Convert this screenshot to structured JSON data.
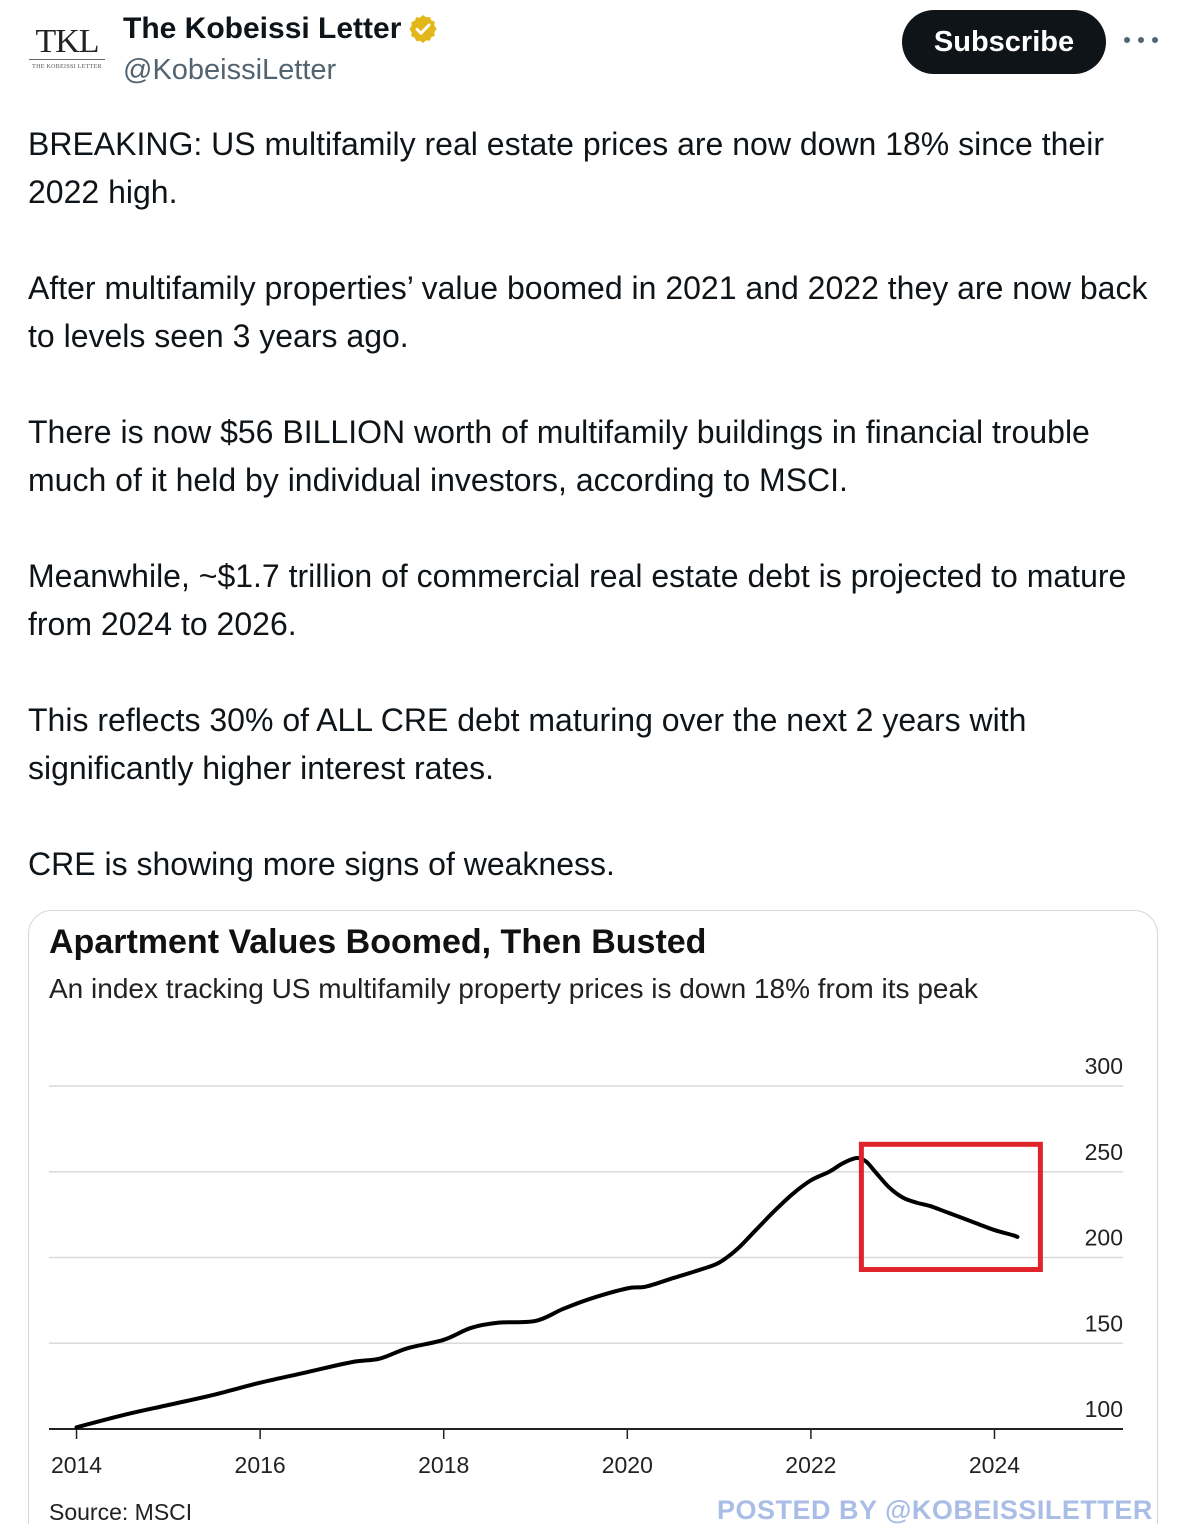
{
  "header": {
    "avatar_text": "TKL",
    "avatar_subtext": "THE KOBEISSI LETTER",
    "display_name": "The Kobeissi Letter",
    "handle": "@KobeissiLetter",
    "subscribe_label": "Subscribe",
    "verified_color": "#e2b719"
  },
  "tweet": {
    "paragraphs": [
      "BREAKING: US multifamily real estate prices are now down 18% since their 2022 high.",
      "After multifamily properties’ value boomed in 2021 and 2022 they are now back to levels seen 3 years ago.",
      "There is now $56 BILLION worth of multifamily buildings in financial trouble much of it held by individual investors, according to MSCI.",
      "Meanwhile, ~$1.7 trillion of commercial real estate debt is projected to mature from 2024 to 2026.",
      "This reflects 30% of ALL CRE debt maturing over the next 2 years with significantly higher interest rates.",
      "CRE is showing more signs of weakness."
    ]
  },
  "media": {
    "source": "Source: MSCI",
    "watermark": "POSTED BY @KOBEISSILETTER"
  },
  "chart_data": {
    "type": "line",
    "title": "Apartment Values Boomed, Then Busted",
    "subtitle": "An index tracking US multifamily property prices is down 18% from its peak",
    "xlabel": "",
    "ylabel": "",
    "xlim": [
      2013.7,
      2025.4
    ],
    "ylim": [
      100,
      300
    ],
    "x_ticks": [
      2014,
      2016,
      2018,
      2020,
      2022,
      2024
    ],
    "y_ticks": [
      100,
      150,
      200,
      250,
      300
    ],
    "y_axis_position": "right",
    "grid": true,
    "line_color": "#000000",
    "highlight_box": {
      "x_range": [
        2022.55,
        2024.5
      ],
      "y_range": [
        193,
        266
      ],
      "color": "#e0242b"
    },
    "series": [
      {
        "x": [
          2014.0,
          2014.5,
          2015.0,
          2015.5,
          2016.0,
          2016.5,
          2017.0,
          2017.3,
          2017.6,
          2018.0,
          2018.3,
          2018.6,
          2019.0,
          2019.3,
          2019.6,
          2020.0,
          2020.2,
          2020.5,
          2020.8,
          2021.0,
          2021.2,
          2021.4,
          2021.6,
          2021.8,
          2022.0,
          2022.2,
          2022.35,
          2022.5,
          2022.6,
          2022.7,
          2022.85,
          2023.0,
          2023.15,
          2023.3,
          2023.5,
          2023.8,
          2024.0,
          2024.2,
          2024.25
        ],
        "y": [
          101,
          108,
          114,
          120,
          127,
          133,
          139,
          141,
          147,
          152,
          159,
          162,
          163,
          170,
          176,
          182,
          183,
          188,
          193,
          197,
          205,
          216,
          227,
          237,
          245,
          250,
          255,
          258,
          256,
          250,
          241,
          235,
          232,
          230,
          226,
          220,
          216,
          213,
          212
        ]
      }
    ]
  }
}
